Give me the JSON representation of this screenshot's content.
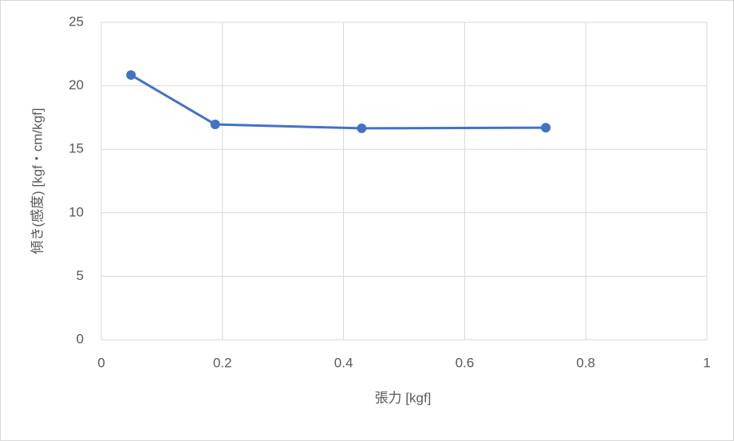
{
  "chart_data": {
    "type": "line",
    "x_label": "張力 [kgf]",
    "y_label": "傾き(感度) [kgf・cm/kgf]",
    "x": [
      0.049,
      0.188,
      0.43,
      0.734
    ],
    "series": [
      {
        "color": "#4472c4",
        "values": [
          20.85,
          16.96,
          16.65,
          16.7
        ]
      }
    ],
    "xlim": [
      0,
      1
    ],
    "xticks": [
      0,
      0.2,
      0.4,
      0.6,
      0.8,
      1
    ],
    "ylim": [
      0,
      25
    ],
    "yticks": [
      0,
      5,
      10,
      15,
      20,
      25
    ],
    "grid": true
  }
}
